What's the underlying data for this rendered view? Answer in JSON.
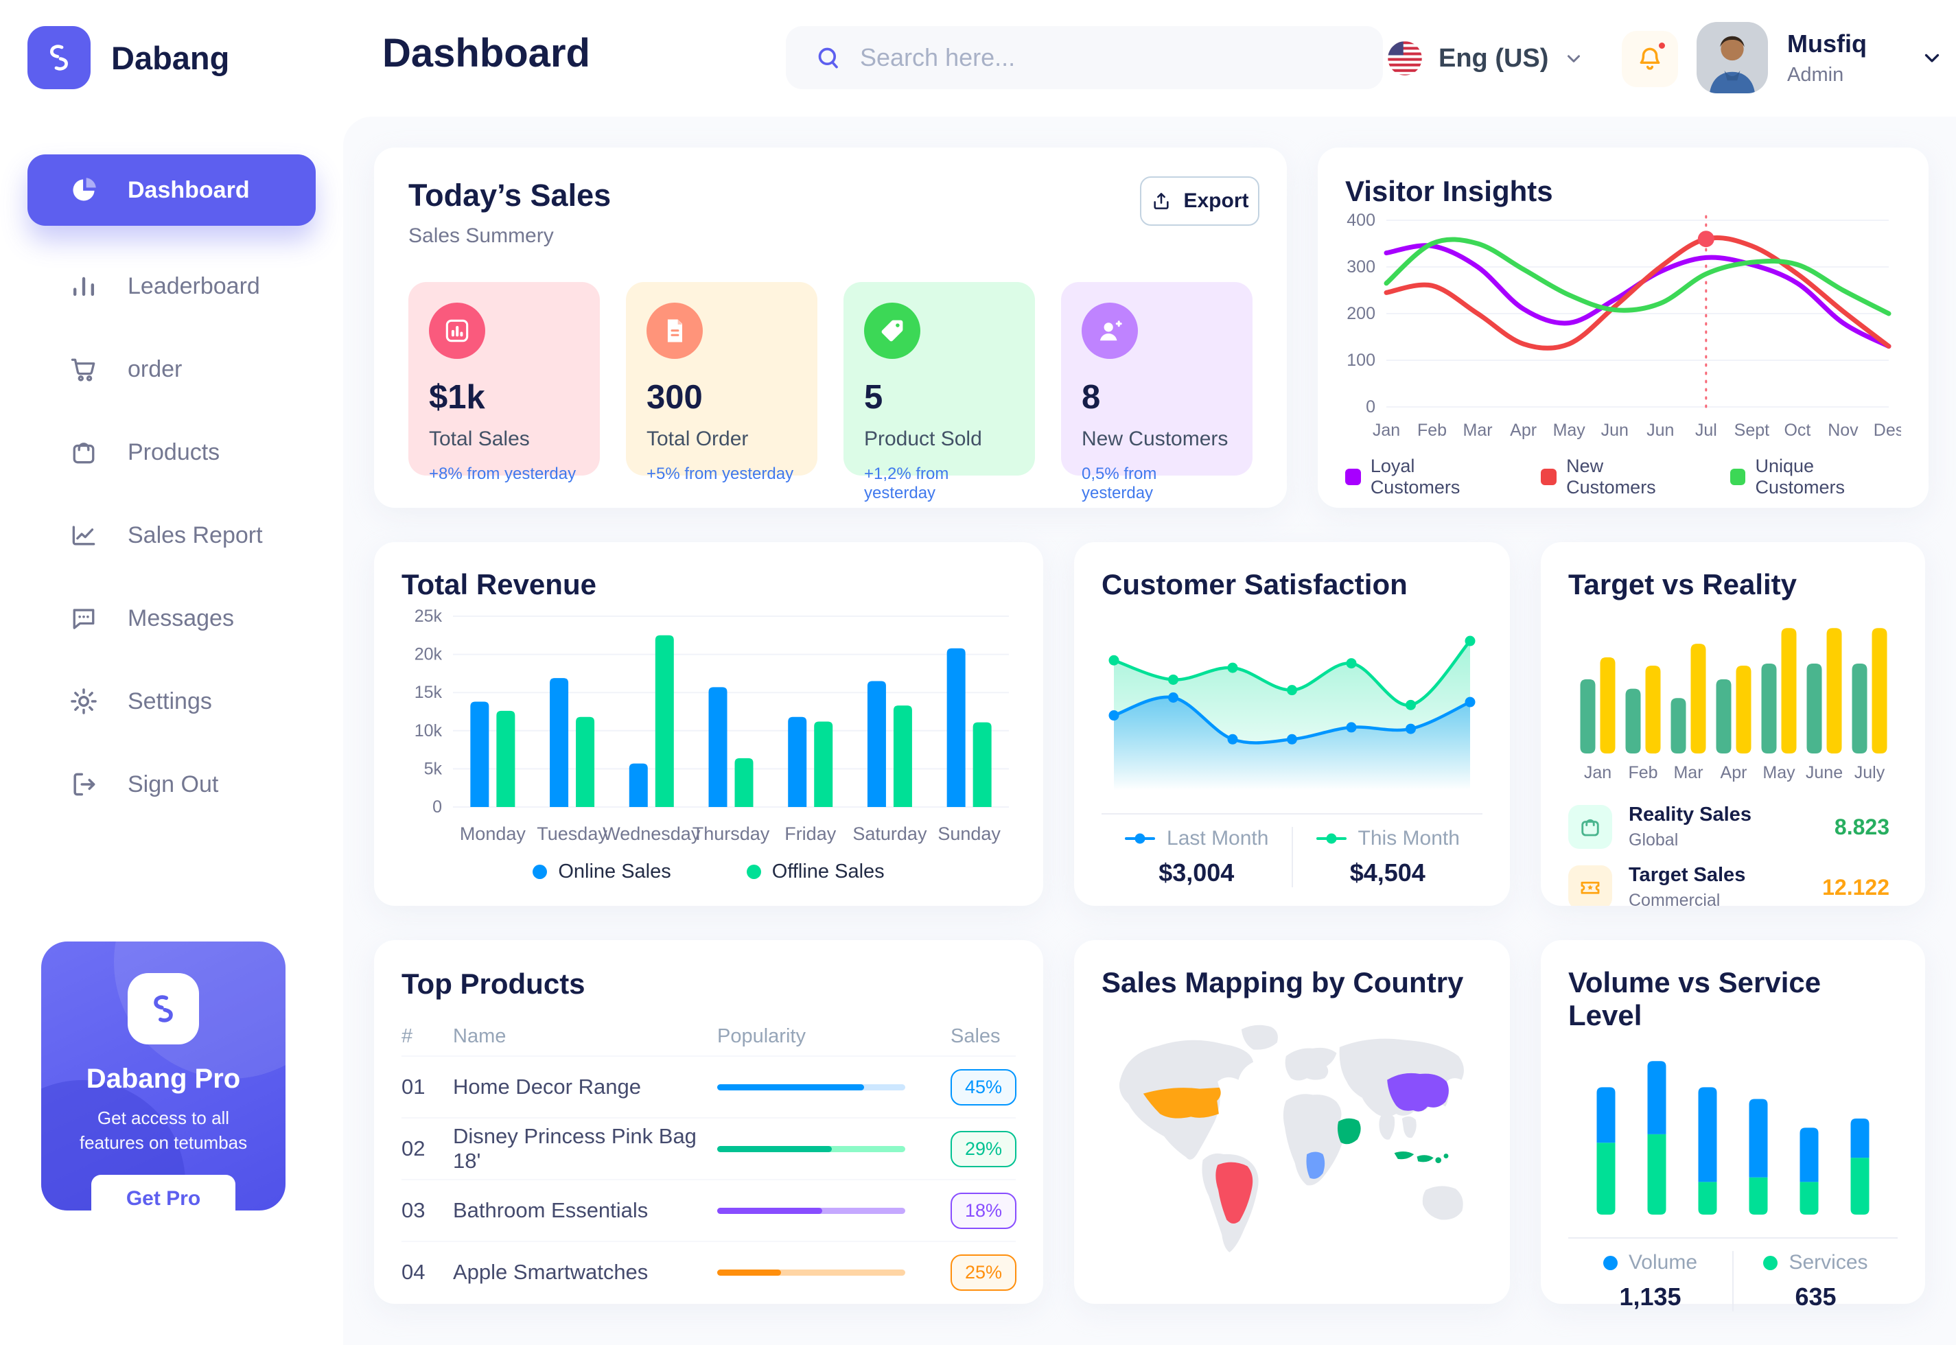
{
  "brand": {
    "name": "Dabang"
  },
  "header": {
    "title": "Dashboard",
    "search_placeholder": "Search here...",
    "language": "Eng (US)",
    "user": {
      "name": "Musfiq",
      "role": "Admin"
    }
  },
  "sidebar": {
    "items": [
      {
        "label": "Dashboard",
        "icon": "pie-chart-icon",
        "active": true
      },
      {
        "label": "Leaderboard",
        "icon": "bar-chart-icon",
        "active": false
      },
      {
        "label": "order",
        "icon": "cart-icon",
        "active": false
      },
      {
        "label": "Products",
        "icon": "bag-icon",
        "active": false
      },
      {
        "label": "Sales Report",
        "icon": "line-chart-icon",
        "active": false
      },
      {
        "label": "Messages",
        "icon": "message-icon",
        "active": false
      },
      {
        "label": "Settings",
        "icon": "gear-icon",
        "active": false
      },
      {
        "label": "Sign Out",
        "icon": "sign-out-icon",
        "active": false
      }
    ],
    "pro_card": {
      "title": "Dabang Pro",
      "subtitle": "Get access to all features on tetumbas",
      "button": "Get Pro"
    }
  },
  "today_sales": {
    "title": "Today’s Sales",
    "subtitle": "Sales Summery",
    "export_label": "Export",
    "cards": [
      {
        "value": "$1k",
        "label": "Total Sales",
        "delta": "+8% from yesterday",
        "bg": "#FFE2E5",
        "icon_bg": "#FA5A7D",
        "icon": "stat-chart-icon"
      },
      {
        "value": "300",
        "label": "Total Order",
        "delta": "+5% from yesterday",
        "bg": "#FFF4DE",
        "icon_bg": "#FF947A",
        "icon": "stat-order-icon"
      },
      {
        "value": "5",
        "label": "Product Sold",
        "delta": "+1,2% from yesterday",
        "bg": "#DCFCE7",
        "icon_bg": "#3CD856",
        "icon": "stat-tag-icon"
      },
      {
        "value": "8",
        "label": "New Customers",
        "delta": "0,5% from yesterday",
        "bg": "#F3E8FF",
        "icon_bg": "#BF83FF",
        "icon": "stat-user-icon"
      }
    ]
  },
  "charts": {
    "visitor_insights": {
      "title": "Visitor Insights",
      "type": "line",
      "x": [
        "Jan",
        "Feb",
        "Mar",
        "Apr",
        "May",
        "Jun",
        "Jun",
        "Jul",
        "Sept",
        "Oct",
        "Nov",
        "Des"
      ],
      "yticks": [
        0,
        100,
        200,
        300,
        400
      ],
      "ymax": 400,
      "series": [
        {
          "name": "Loyal Customers",
          "color": "#A700FF",
          "values": [
            330,
            345,
            300,
            210,
            180,
            230,
            290,
            320,
            305,
            265,
            180,
            130
          ]
        },
        {
          "name": "New Customers",
          "color": "#EF4444",
          "values": [
            245,
            260,
            200,
            135,
            135,
            215,
            300,
            360,
            345,
            285,
            205,
            130
          ]
        },
        {
          "name": "Unique Customers",
          "color": "#3CD856",
          "values": [
            265,
            350,
            350,
            295,
            240,
            208,
            222,
            285,
            310,
            305,
            250,
            200
          ]
        }
      ],
      "marker": {
        "series_index": 1,
        "x_index": 7,
        "value": 360
      }
    },
    "total_revenue": {
      "title": "Total Revenue",
      "type": "bar",
      "categories": [
        "Monday",
        "Tuesday",
        "Wednesday",
        "Thursday",
        "Friday",
        "Saturday",
        "Sunday"
      ],
      "ytick_labels": [
        "0",
        "5k",
        "10k",
        "15k",
        "20k",
        "25k"
      ],
      "ymax": 25,
      "series": [
        {
          "name": "Online Sales",
          "color": "#0095FF",
          "values": [
            13.8,
            16.9,
            5.7,
            15.7,
            11.8,
            16.5,
            20.8
          ]
        },
        {
          "name": "Offline Sales",
          "color": "#00E096",
          "values": [
            12.6,
            11.8,
            22.5,
            6.4,
            11.2,
            13.3,
            11.1
          ]
        }
      ]
    },
    "customer_satisfaction": {
      "title": "Customer Satisfaction",
      "type": "area",
      "ymax": 100,
      "series": [
        {
          "name": "Last Month",
          "color": "#0095FF",
          "total": "$3,004",
          "values": [
            38,
            50,
            22,
            22,
            30,
            29,
            47
          ]
        },
        {
          "name": "This Month",
          "color": "#00E096",
          "total": "$4,504",
          "values": [
            75,
            62,
            70,
            55,
            73,
            45,
            88
          ]
        }
      ]
    },
    "target_vs_reality": {
      "title": "Target vs Reality",
      "type": "bar",
      "categories": [
        "Jan",
        "Feb",
        "Mar",
        "Apr",
        "May",
        "June",
        "July"
      ],
      "ymax": 13,
      "series": [
        {
          "name": "Reality Sales",
          "color": "#4AB58E",
          "values": [
            7.1,
            6.2,
            5.3,
            7.1,
            8.6,
            8.6,
            8.6
          ]
        },
        {
          "name": "Target Sales",
          "color": "#FFCF00",
          "values": [
            9.2,
            8.4,
            10.5,
            8.4,
            12,
            12,
            12
          ]
        }
      ],
      "legend": [
        {
          "name": "Reality Sales",
          "sub": "Global",
          "value": "8.823",
          "value_color": "#27AE60",
          "icon_bg": "#E2FFF3",
          "icon": "bag-small-icon",
          "icon_color": "#4AB58E"
        },
        {
          "name": "Target Sales",
          "sub": "Commercial",
          "value": "12.122",
          "value_color": "#FFA412",
          "icon_bg": "#FFF4DE",
          "icon": "ticket-icon",
          "icon_color": "#FFA412"
        }
      ]
    },
    "volume_service": {
      "title": "Volume vs Service Level",
      "type": "stacked-bar",
      "ymax": 250,
      "series": [
        {
          "name": "Volume",
          "color": "#0095FF",
          "total": "1,135",
          "values": [
            85,
            112,
            145,
            120,
            83,
            60
          ]
        },
        {
          "name": "Services",
          "color": "#00E096",
          "total": "635",
          "values": [
            110,
            123,
            50,
            57,
            50,
            87
          ]
        }
      ]
    }
  },
  "top_products": {
    "title": "Top Products",
    "columns": [
      "#",
      "Name",
      "Popularity",
      "Sales"
    ],
    "rows": [
      {
        "num": "01",
        "name": "Home Decor Range",
        "popularity": 0.78,
        "sales": "45%",
        "color": "#0095FF",
        "track": "#CDE7FF",
        "badge_bg": "#F0F9FF"
      },
      {
        "num": "02",
        "name": "Disney Princess Pink Bag 18'",
        "popularity": 0.61,
        "sales": "29%",
        "color": "#00C292",
        "track": "#8CFAC7",
        "badge_bg": "#F0FDF4"
      },
      {
        "num": "03",
        "name": "Bathroom Essentials",
        "popularity": 0.56,
        "sales": "18%",
        "color": "#884DFF",
        "track": "#C5A8FF",
        "badge_bg": "#F9F5FF"
      },
      {
        "num": "04",
        "name": "Apple Smartwatches",
        "popularity": 0.34,
        "sales": "25%",
        "color": "#FF8F0D",
        "track": "#FFD5A4",
        "badge_bg": "#FFF8EC"
      }
    ]
  },
  "sales_mapping": {
    "title": "Sales Mapping by Country",
    "countries": [
      {
        "name": "United States",
        "color": "#FFA412"
      },
      {
        "name": "Brazil",
        "color": "#F64E60"
      },
      {
        "name": "DR Congo",
        "color": "#6D9FFD"
      },
      {
        "name": "Saudi Arabia",
        "color": "#00B574"
      },
      {
        "name": "China",
        "color": "#8950FC"
      },
      {
        "name": "Indonesia",
        "color": "#00B574"
      }
    ]
  },
  "colors": {
    "primary": "#5D5FEF",
    "heading": "#151D48",
    "muted": "#737791",
    "map_base": "#E6E8ED"
  }
}
